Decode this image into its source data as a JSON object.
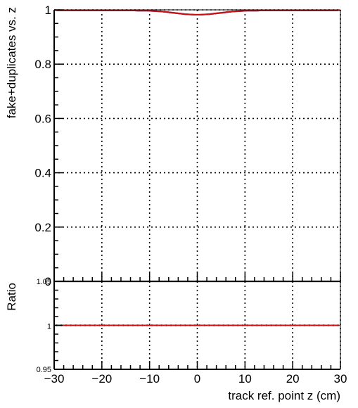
{
  "chart_data": [
    {
      "type": "line",
      "panel": "main",
      "ylabel": "fake+duplicates vs. z",
      "xlabel": "",
      "xlim": [
        -30,
        30
      ],
      "ylim": [
        0,
        1.0
      ],
      "x_ticks": [
        "−30",
        "−20",
        "−10",
        "0",
        "10",
        "20",
        "30"
      ],
      "y_ticks": [
        "0",
        "0.2",
        "0.4",
        "0.6",
        "0.8",
        "1"
      ],
      "grid": true,
      "colors": {
        "series_a": "#1f3bd1",
        "series_b": "#cc1111"
      },
      "series": [
        {
          "x": [
            -29.5,
            -28.5,
            -27.5,
            -26.5,
            -25.5,
            -24.5,
            -23.5,
            -22.5,
            -21.5,
            -20.5,
            -19.5,
            -18.5,
            -17.5,
            -16.5,
            -15.5,
            -14.5,
            -13.5,
            -12.5,
            -11.5,
            -10.5,
            -9.5,
            -8.5,
            -7.5,
            -6.5,
            -5.5,
            -4.5,
            -3.5,
            -2.5,
            -1.5,
            -0.5,
            0.5,
            1.5,
            2.5,
            3.5,
            4.5,
            5.5,
            6.5,
            7.5,
            8.5,
            9.5,
            10.5,
            11.5,
            12.5,
            13.5,
            14.5,
            15.5,
            16.5,
            17.5,
            18.5,
            19.5,
            20.5,
            21.5,
            22.5,
            23.5,
            24.5,
            25.5,
            26.5,
            27.5,
            28.5,
            29.5
          ],
          "values": [
            0.998,
            0.998,
            0.998,
            0.998,
            0.998,
            0.998,
            0.998,
            0.998,
            0.998,
            0.998,
            0.998,
            0.998,
            0.998,
            0.998,
            0.998,
            0.998,
            0.998,
            0.997,
            0.997,
            0.997,
            0.996,
            0.995,
            0.994,
            0.992,
            0.99,
            0.988,
            0.986,
            0.984,
            0.983,
            0.982,
            0.982,
            0.983,
            0.984,
            0.986,
            0.988,
            0.99,
            0.992,
            0.994,
            0.995,
            0.996,
            0.997,
            0.997,
            0.997,
            0.998,
            0.998,
            0.998,
            0.998,
            0.998,
            0.998,
            0.998,
            0.998,
            0.998,
            0.998,
            0.998,
            0.998,
            0.998,
            0.998,
            0.998,
            0.998,
            0.998
          ]
        },
        {
          "x": [
            -29.5,
            -28.5,
            -27.5,
            -26.5,
            -25.5,
            -24.5,
            -23.5,
            -22.5,
            -21.5,
            -20.5,
            -19.5,
            -18.5,
            -17.5,
            -16.5,
            -15.5,
            -14.5,
            -13.5,
            -12.5,
            -11.5,
            -10.5,
            -9.5,
            -8.5,
            -7.5,
            -6.5,
            -5.5,
            -4.5,
            -3.5,
            -2.5,
            -1.5,
            -0.5,
            0.5,
            1.5,
            2.5,
            3.5,
            4.5,
            5.5,
            6.5,
            7.5,
            8.5,
            9.5,
            10.5,
            11.5,
            12.5,
            13.5,
            14.5,
            15.5,
            16.5,
            17.5,
            18.5,
            19.5,
            20.5,
            21.5,
            22.5,
            23.5,
            24.5,
            25.5,
            26.5,
            27.5,
            28.5,
            29.5
          ],
          "values": [
            0.998,
            0.998,
            0.998,
            0.998,
            0.998,
            0.998,
            0.998,
            0.998,
            0.998,
            0.998,
            0.998,
            0.998,
            0.998,
            0.998,
            0.998,
            0.998,
            0.998,
            0.997,
            0.997,
            0.997,
            0.996,
            0.995,
            0.994,
            0.992,
            0.99,
            0.988,
            0.986,
            0.984,
            0.983,
            0.982,
            0.982,
            0.983,
            0.984,
            0.986,
            0.988,
            0.99,
            0.992,
            0.994,
            0.995,
            0.996,
            0.997,
            0.997,
            0.997,
            0.998,
            0.998,
            0.998,
            0.998,
            0.998,
            0.998,
            0.998,
            0.998,
            0.998,
            0.998,
            0.998,
            0.998,
            0.998,
            0.998,
            0.998,
            0.998,
            0.998
          ]
        }
      ]
    },
    {
      "type": "line",
      "panel": "ratio",
      "ylabel": "Ratio",
      "xlabel": "track ref. point z (cm)",
      "xlim": [
        -30,
        30
      ],
      "ylim": [
        0.95,
        1.05
      ],
      "x_ticks": [
        "−30",
        "−20",
        "−10",
        "0",
        "10",
        "20",
        "30"
      ],
      "y_ticks": [
        "0.95",
        "1",
        "1.05"
      ],
      "grid": true,
      "colors": {
        "ratio_line": "#cc1111",
        "unity_line": "#555555"
      },
      "series": [
        {
          "x": [
            -29.5,
            -28.5,
            -27.5,
            -26.5,
            -25.5,
            -24.5,
            -23.5,
            -22.5,
            -21.5,
            -20.5,
            -19.5,
            -18.5,
            -17.5,
            -16.5,
            -15.5,
            -14.5,
            -13.5,
            -12.5,
            -11.5,
            -10.5,
            -9.5,
            -8.5,
            -7.5,
            -6.5,
            -5.5,
            -4.5,
            -3.5,
            -2.5,
            -1.5,
            -0.5,
            0.5,
            1.5,
            2.5,
            3.5,
            4.5,
            5.5,
            6.5,
            7.5,
            8.5,
            9.5,
            10.5,
            11.5,
            12.5,
            13.5,
            14.5,
            15.5,
            16.5,
            17.5,
            18.5,
            19.5,
            20.5,
            21.5,
            22.5,
            23.5,
            24.5,
            25.5,
            26.5,
            27.5,
            28.5,
            29.5
          ],
          "values": [
            1,
            1,
            1,
            1,
            1,
            1,
            1,
            1,
            1,
            1,
            1,
            1,
            1,
            1,
            1,
            1,
            1,
            1,
            1,
            1,
            1,
            1,
            1,
            1,
            1,
            1,
            1,
            1,
            1,
            1,
            1,
            1,
            1,
            1,
            1,
            1,
            1,
            1,
            1,
            1,
            1,
            1,
            1,
            1,
            1,
            1,
            1,
            1,
            1,
            1,
            1,
            1,
            1,
            1,
            1,
            1,
            1,
            1,
            1,
            1
          ]
        }
      ]
    }
  ]
}
